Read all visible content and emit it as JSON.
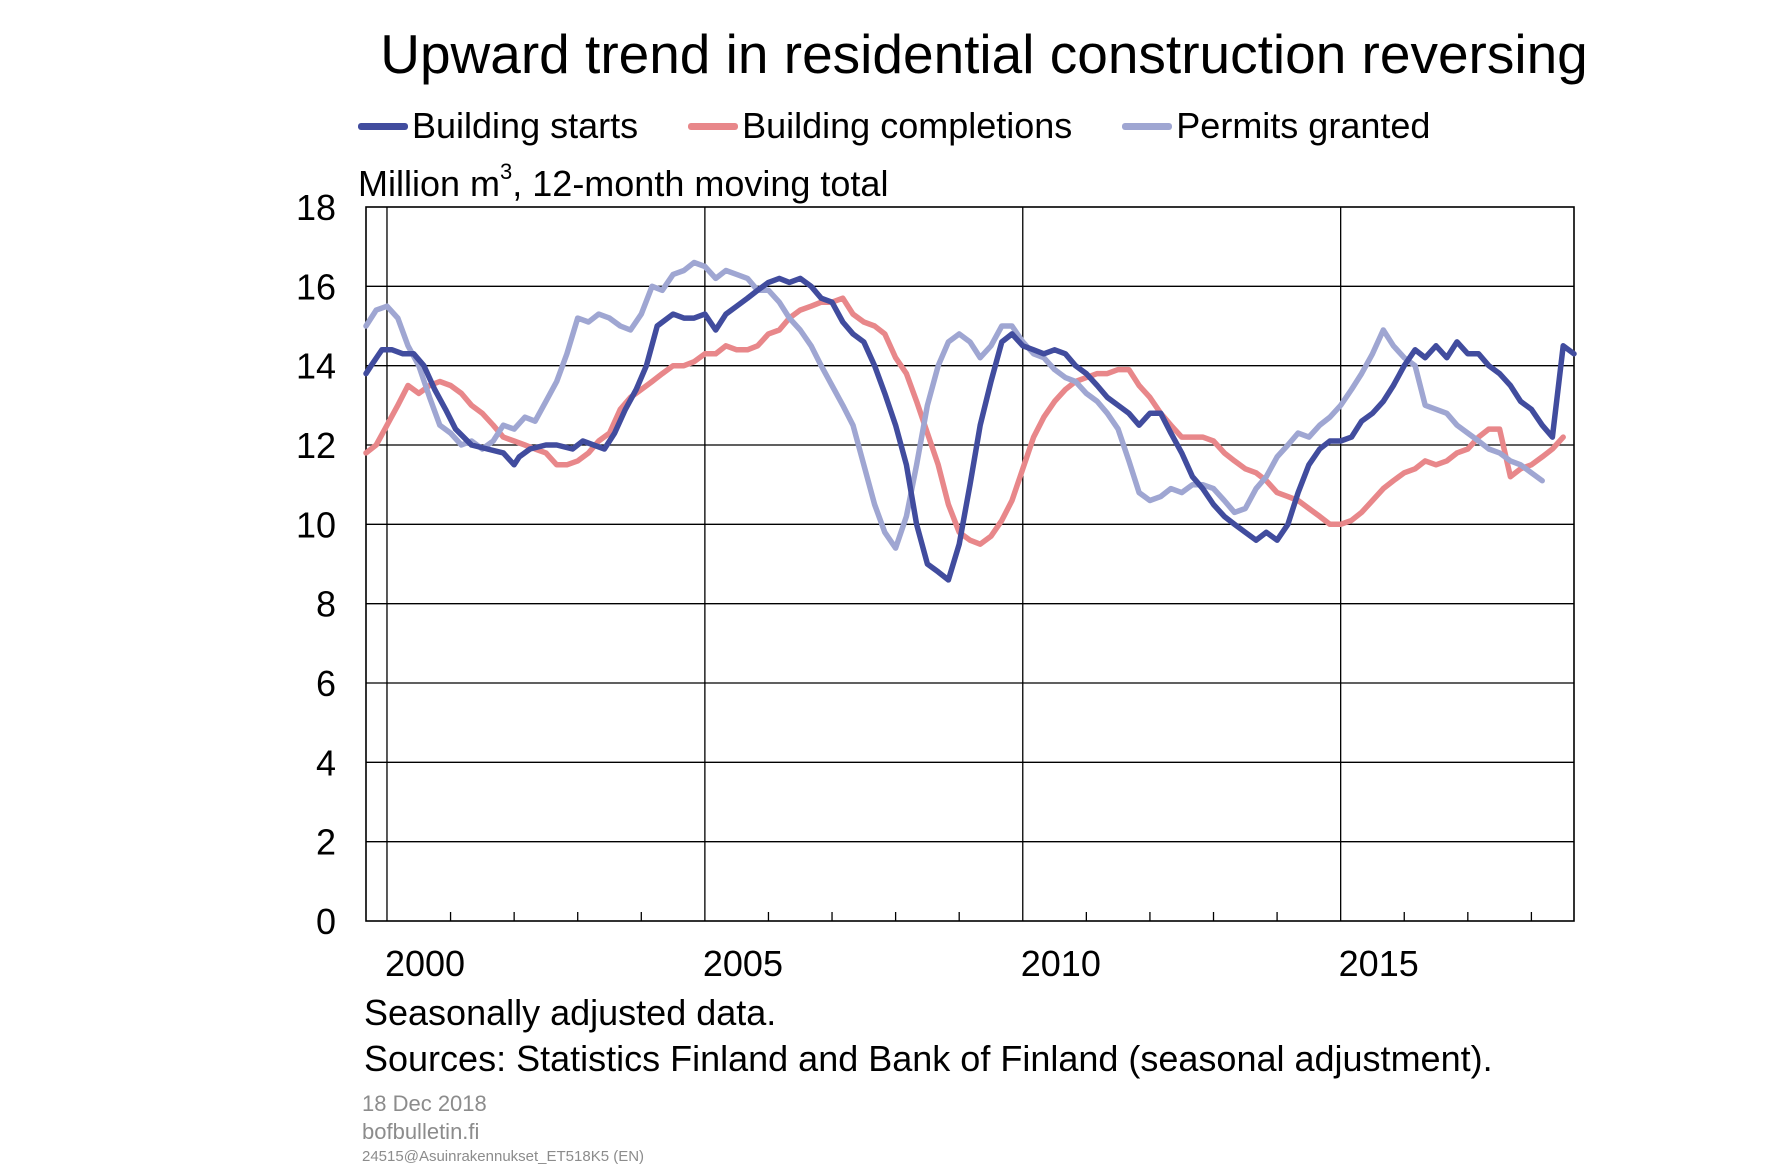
{
  "chart_data": {
    "type": "line",
    "title": "Upward trend in residential construction reversing",
    "unit_label": {
      "pre": "Million m",
      "sup": "3",
      "post": ", 12-month moving total"
    },
    "ylim": [
      0,
      18
    ],
    "y_ticks": [
      0,
      2,
      4,
      6,
      8,
      10,
      12,
      14,
      16,
      18
    ],
    "xlim": [
      1999.67,
      2018.67
    ],
    "x_tick_labels": [
      {
        "value": 2000,
        "label": "2000"
      },
      {
        "value": 2005,
        "label": "2005"
      },
      {
        "value": 2010,
        "label": "2010"
      },
      {
        "value": 2015,
        "label": "2015"
      }
    ],
    "x_major_gridlines": [
      2000,
      2005,
      2010,
      2015
    ],
    "x_minor_ticks": [
      2001,
      2002,
      2003,
      2004,
      2006,
      2007,
      2008,
      2009,
      2011,
      2012,
      2013,
      2014,
      2016,
      2017,
      2018
    ],
    "grid": true,
    "legend_position": "top",
    "series": [
      {
        "name": "Building starts",
        "color": "#414C9E",
        "x": [
          1999.67,
          1999.75,
          1999.92,
          2000.0,
          2000.08,
          2000.25,
          2000.42,
          2000.58,
          2000.75,
          2000.92,
          2001.08,
          2001.33,
          2001.58,
          2001.83,
          2002.0,
          2002.08,
          2002.25,
          2002.5,
          2002.67,
          2002.92,
          2003.08,
          2003.25,
          2003.42,
          2003.58,
          2003.75,
          2003.92,
          2004.08,
          2004.25,
          2004.5,
          2004.67,
          2004.83,
          2005.0,
          2005.17,
          2005.33,
          2005.5,
          2005.67,
          2005.83,
          2006.0,
          2006.17,
          2006.33,
          2006.5,
          2006.67,
          2006.83,
          2007.0,
          2007.17,
          2007.33,
          2007.5,
          2007.67,
          2007.83,
          2008.0,
          2008.17,
          2008.33,
          2008.5,
          2008.67,
          2008.83,
          2009.0,
          2009.17,
          2009.33,
          2009.5,
          2009.67,
          2009.83,
          2010.0,
          2010.17,
          2010.33,
          2010.5,
          2010.67,
          2010.83,
          2011.0,
          2011.17,
          2011.33,
          2011.5,
          2011.67,
          2011.83,
          2012.0,
          2012.17,
          2012.33,
          2012.5,
          2012.67,
          2012.83,
          2013.0,
          2013.17,
          2013.33,
          2013.5,
          2013.67,
          2013.83,
          2014.0,
          2014.17,
          2014.33,
          2014.5,
          2014.67,
          2014.83,
          2015.0,
          2015.17,
          2015.33,
          2015.5,
          2015.67,
          2015.83,
          2016.0,
          2016.17,
          2016.33,
          2016.5,
          2016.67,
          2016.83,
          2017.0,
          2017.17,
          2017.33,
          2017.5,
          2017.67,
          2017.83,
          2018.0,
          2018.17,
          2018.33,
          2018.5,
          2018.67
        ],
        "values": [
          13.8,
          14.0,
          14.4,
          14.4,
          14.4,
          14.3,
          14.3,
          14.0,
          13.4,
          12.9,
          12.4,
          12.0,
          11.9,
          11.8,
          11.5,
          11.7,
          11.9,
          12.0,
          12.0,
          11.9,
          12.1,
          12.0,
          11.9,
          12.3,
          12.9,
          13.4,
          14.0,
          15.0,
          15.3,
          15.2,
          15.2,
          15.3,
          14.9,
          15.3,
          15.5,
          15.7,
          15.9,
          16.1,
          16.2,
          16.1,
          16.2,
          16.0,
          15.7,
          15.6,
          15.1,
          14.8,
          14.6,
          14.0,
          13.3,
          12.5,
          11.5,
          10.0,
          9.0,
          8.8,
          8.6,
          9.5,
          11.0,
          12.5,
          13.6,
          14.6,
          14.8,
          14.5,
          14.4,
          14.3,
          14.4,
          14.3,
          14.0,
          13.8,
          13.5,
          13.2,
          13.0,
          12.8,
          12.5,
          12.8,
          12.8,
          12.3,
          11.8,
          11.2,
          10.9,
          10.5,
          10.2,
          10.0,
          9.8,
          9.6,
          9.8,
          9.6,
          10.0,
          10.8,
          11.5,
          11.9,
          12.1,
          12.1,
          12.2,
          12.6,
          12.8,
          13.1,
          13.5,
          14.0,
          14.4,
          14.2,
          14.5,
          14.2,
          14.6,
          14.3,
          14.3,
          14.0,
          13.8,
          13.5,
          13.1,
          12.9,
          12.5,
          12.2,
          14.5,
          14.3
        ],
        "note_x": "values approximate, read from chart",
        "_x_sorted": true
      },
      {
        "name": "Building completions",
        "color": "#E8878A",
        "x": [
          1999.67,
          1999.83,
          2000.0,
          2000.17,
          2000.33,
          2000.5,
          2000.67,
          2000.83,
          2001.0,
          2001.17,
          2001.33,
          2001.5,
          2001.67,
          2001.83,
          2002.0,
          2002.17,
          2002.33,
          2002.5,
          2002.67,
          2002.83,
          2003.0,
          2003.17,
          2003.33,
          2003.5,
          2003.67,
          2003.83,
          2004.0,
          2004.17,
          2004.33,
          2004.5,
          2004.67,
          2004.83,
          2005.0,
          2005.17,
          2005.33,
          2005.5,
          2005.67,
          2005.83,
          2006.0,
          2006.17,
          2006.33,
          2006.5,
          2006.67,
          2006.83,
          2007.0,
          2007.17,
          2007.33,
          2007.5,
          2007.67,
          2007.83,
          2008.0,
          2008.17,
          2008.33,
          2008.5,
          2008.67,
          2008.83,
          2009.0,
          2009.17,
          2009.33,
          2009.5,
          2009.67,
          2009.83,
          2010.0,
          2010.17,
          2010.33,
          2010.5,
          2010.67,
          2010.83,
          2011.0,
          2011.17,
          2011.33,
          2011.5,
          2011.67,
          2011.83,
          2012.0,
          2012.17,
          2012.33,
          2012.5,
          2012.67,
          2012.83,
          2013.0,
          2013.17,
          2013.33,
          2013.5,
          2013.67,
          2013.83,
          2014.0,
          2014.17,
          2014.33,
          2014.5,
          2014.67,
          2014.83,
          2015.0,
          2015.17,
          2015.33,
          2015.5,
          2015.67,
          2015.83,
          2016.0,
          2016.17,
          2016.33,
          2016.5,
          2016.67,
          2016.83,
          2017.0,
          2017.17,
          2017.33,
          2017.5,
          2017.67,
          2017.83,
          2018.0,
          2018.17,
          2018.33,
          2018.5
        ],
        "values": [
          11.8,
          12.0,
          12.5,
          13.0,
          13.5,
          13.3,
          13.5,
          13.6,
          13.5,
          13.3,
          13.0,
          12.8,
          12.5,
          12.2,
          12.1,
          12.0,
          11.9,
          11.8,
          11.5,
          11.5,
          11.6,
          11.8,
          12.1,
          12.3,
          12.9,
          13.2,
          13.4,
          13.6,
          13.8,
          14.0,
          14.0,
          14.1,
          14.3,
          14.3,
          14.5,
          14.4,
          14.4,
          14.5,
          14.8,
          14.9,
          15.2,
          15.4,
          15.5,
          15.6,
          15.6,
          15.7,
          15.3,
          15.1,
          15.0,
          14.8,
          14.2,
          13.8,
          13.1,
          12.3,
          11.5,
          10.5,
          9.8,
          9.6,
          9.5,
          9.7,
          10.1,
          10.6,
          11.4,
          12.2,
          12.7,
          13.1,
          13.4,
          13.6,
          13.7,
          13.8,
          13.8,
          13.9,
          13.9,
          13.5,
          13.2,
          12.8,
          12.5,
          12.2,
          12.2,
          12.2,
          12.1,
          11.8,
          11.6,
          11.4,
          11.3,
          11.1,
          10.8,
          10.7,
          10.6,
          10.4,
          10.2,
          10.0,
          10.0,
          10.1,
          10.3,
          10.6,
          10.9,
          11.1,
          11.3,
          11.4,
          11.6,
          11.5,
          11.6,
          11.8,
          11.9,
          12.2,
          12.4,
          12.4,
          11.2,
          11.4,
          11.5,
          11.7,
          11.9,
          12.2
        ]
      },
      {
        "name": "Permits granted",
        "color": "#9FA6D2",
        "x": [
          1999.67,
          1999.83,
          2000.0,
          2000.17,
          2000.33,
          2000.5,
          2000.67,
          2000.83,
          2001.0,
          2001.17,
          2001.33,
          2001.5,
          2001.67,
          2001.83,
          2002.0,
          2002.17,
          2002.33,
          2002.5,
          2002.67,
          2002.83,
          2003.0,
          2003.17,
          2003.33,
          2003.5,
          2003.67,
          2003.83,
          2004.0,
          2004.17,
          2004.33,
          2004.5,
          2004.67,
          2004.83,
          2005.0,
          2005.17,
          2005.33,
          2005.5,
          2005.67,
          2005.83,
          2006.0,
          2006.17,
          2006.33,
          2006.5,
          2006.67,
          2006.83,
          2007.0,
          2007.17,
          2007.33,
          2007.5,
          2007.67,
          2007.83,
          2008.0,
          2008.17,
          2008.33,
          2008.5,
          2008.67,
          2008.83,
          2009.0,
          2009.17,
          2009.33,
          2009.5,
          2009.67,
          2009.83,
          2010.0,
          2010.17,
          2010.33,
          2010.5,
          2010.67,
          2010.83,
          2011.0,
          2011.17,
          2011.33,
          2011.5,
          2011.67,
          2011.83,
          2012.0,
          2012.17,
          2012.33,
          2012.5,
          2012.67,
          2012.83,
          2013.0,
          2013.17,
          2013.33,
          2013.5,
          2013.67,
          2013.83,
          2014.0,
          2014.17,
          2014.33,
          2014.5,
          2014.67,
          2014.83,
          2015.0,
          2015.17,
          2015.33,
          2015.5,
          2015.67,
          2015.83,
          2016.0,
          2016.17,
          2016.33,
          2016.5,
          2016.67,
          2016.83,
          2017.0,
          2017.17,
          2017.33,
          2017.5,
          2017.67,
          2017.83,
          2018.0,
          2018.17
        ],
        "values": [
          15.0,
          15.4,
          15.5,
          15.2,
          14.5,
          14.0,
          13.2,
          12.5,
          12.3,
          12.0,
          12.1,
          11.9,
          12.1,
          12.5,
          12.4,
          12.7,
          12.6,
          13.1,
          13.6,
          14.3,
          15.2,
          15.1,
          15.3,
          15.2,
          15.0,
          14.9,
          15.3,
          16.0,
          15.9,
          16.3,
          16.4,
          16.6,
          16.5,
          16.2,
          16.4,
          16.3,
          16.2,
          15.9,
          15.9,
          15.6,
          15.2,
          14.9,
          14.5,
          14.0,
          13.5,
          13.0,
          12.5,
          11.5,
          10.5,
          9.8,
          9.4,
          10.2,
          11.5,
          13.0,
          14.0,
          14.6,
          14.8,
          14.6,
          14.2,
          14.5,
          15.0,
          15.0,
          14.6,
          14.3,
          14.2,
          13.9,
          13.7,
          13.6,
          13.3,
          13.1,
          12.8,
          12.4,
          11.6,
          10.8,
          10.6,
          10.7,
          10.9,
          10.8,
          11.0,
          11.0,
          10.9,
          10.6,
          10.3,
          10.4,
          10.9,
          11.2,
          11.7,
          12.0,
          12.3,
          12.2,
          12.5,
          12.7,
          13.0,
          13.4,
          13.8,
          14.3,
          14.9,
          14.5,
          14.2,
          14.0,
          13.0,
          12.9,
          12.8,
          12.5,
          12.3,
          12.1,
          11.9,
          11.8,
          11.6,
          11.5,
          11.3,
          11.1
        ]
      }
    ]
  },
  "notes": {
    "line1": "Seasonally adjusted data.",
    "line2": "Sources: Statistics Finland and Bank of Finland (seasonal adjustment)."
  },
  "meta": {
    "date": "18 Dec 2018",
    "site": "bofbulletin.fi",
    "code": "24515@Asuinrakennukset_ET518K5 (EN)"
  }
}
